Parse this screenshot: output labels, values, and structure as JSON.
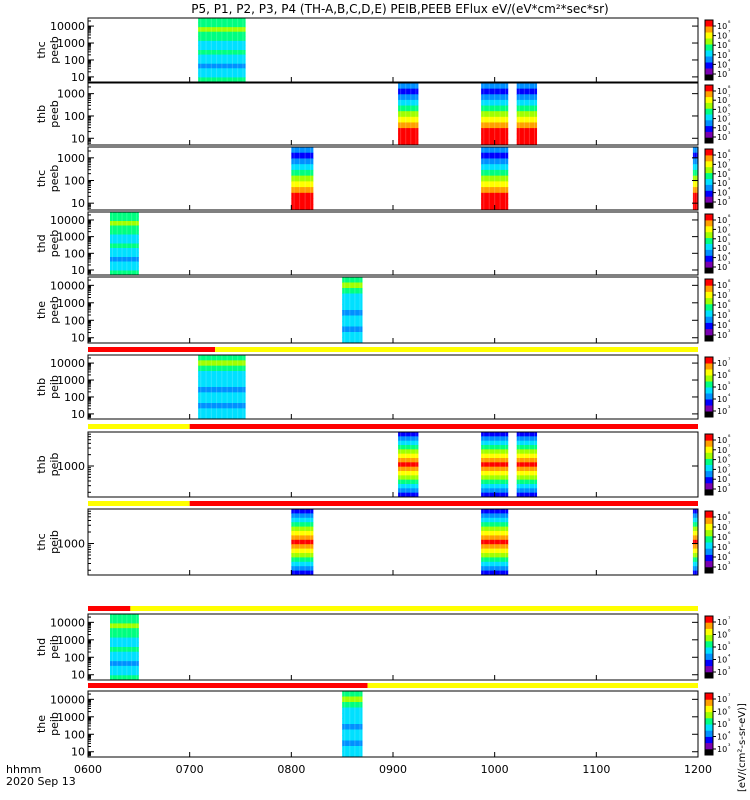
{
  "title": "P5, P1, P2, P3, P4 (TH-A,B,C,D,E) PEIB,PEEB EFlux eV/(eV*cm²*sec*sr)",
  "footer": {
    "axis_name": "hhmm",
    "date": "2020 Sep 13"
  },
  "colorbar_unit": "[eV/(cm²-s-sr-eV)]",
  "colors": {
    "flag_red": "#ff0000",
    "flag_yellow": "#ffff00",
    "colormap": [
      "#000000",
      "#7a00b0",
      "#0000ff",
      "#0090ff",
      "#00e0ff",
      "#00ff80",
      "#a0ff00",
      "#ffff00",
      "#ffa000",
      "#ff0000"
    ]
  },
  "chart_data": {
    "type": "heatmap",
    "x_ticks": [
      "0600",
      "0700",
      "0800",
      "0900",
      "1000",
      "1100",
      "1200"
    ],
    "xlim": [
      "06:00",
      "12:00"
    ],
    "panels": [
      {
        "ylabel": [
          "thc",
          "peeb"
        ],
        "yscale": "log",
        "ylim": [
          5,
          30000
        ],
        "yticks": [
          "10",
          "100",
          "1000",
          "10000"
        ],
        "cbar_ticks": [
          "10⁸",
          "10⁷",
          "10⁶",
          "10⁵",
          "10⁴",
          "10³"
        ],
        "intervals": [
          {
            "start": "07:05",
            "end": "07:33",
            "palette": "green"
          }
        ]
      },
      {
        "ylabel": [
          "thb",
          "peeb"
        ],
        "yscale": "log",
        "ylim": [
          5,
          3000
        ],
        "yticks": [
          "10",
          "100",
          "1000"
        ],
        "cbar_ticks": [
          "10⁸",
          "10⁷",
          "10⁶",
          "10⁵",
          "10⁴",
          "10³"
        ],
        "intervals": [
          {
            "start": "09:03",
            "end": "09:15",
            "palette": "full"
          },
          {
            "start": "09:52",
            "end": "10:08",
            "palette": "full"
          },
          {
            "start": "10:13",
            "end": "10:25",
            "palette": "full"
          }
        ]
      },
      {
        "ylabel": [
          "thc",
          "peeb"
        ],
        "yscale": "log",
        "ylim": [
          5,
          3000
        ],
        "yticks": [
          "10",
          "100",
          "1000"
        ],
        "cbar_ticks": [
          "10⁸",
          "10⁷",
          "10⁶",
          "10⁵",
          "10⁴",
          "10³"
        ],
        "intervals": [
          {
            "start": "08:00",
            "end": "08:13",
            "palette": "full"
          },
          {
            "start": "09:52",
            "end": "10:08",
            "palette": "full"
          },
          {
            "start": "11:57",
            "end": "12:00",
            "palette": "full"
          }
        ]
      },
      {
        "ylabel": [
          "thd",
          "peeb"
        ],
        "yscale": "log",
        "ylim": [
          5,
          30000
        ],
        "yticks": [
          "10",
          "100",
          "1000",
          "10000"
        ],
        "cbar_ticks": [
          "10⁸",
          "10⁷",
          "10⁶",
          "10⁵",
          "10⁴",
          "10³"
        ],
        "intervals": [
          {
            "start": "06:13",
            "end": "06:30",
            "palette": "green"
          }
        ]
      },
      {
        "ylabel": [
          "the",
          "peeb"
        ],
        "yscale": "log",
        "ylim": [
          5,
          30000
        ],
        "yticks": [
          "10",
          "100",
          "1000",
          "10000"
        ],
        "cbar_ticks": [
          "10⁸",
          "10⁷",
          "10⁶",
          "10⁵",
          "10⁴",
          "10³"
        ],
        "intervals": [
          {
            "start": "08:30",
            "end": "08:42",
            "palette": "blue"
          }
        ]
      },
      {
        "ylabel": [
          "thb",
          "peib"
        ],
        "yscale": "log",
        "ylim": [
          5,
          30000
        ],
        "yticks": [
          "10",
          "100",
          "1000",
          "10000"
        ],
        "cbar_ticks": [
          "10⁷",
          "10⁶",
          "10⁵",
          "10⁴",
          "10³"
        ],
        "flag": [
          {
            "start": "06:00",
            "end": "07:15",
            "color": "red"
          },
          {
            "start": "07:15",
            "end": "12:00",
            "color": "yellow"
          }
        ],
        "intervals": [
          {
            "start": "07:05",
            "end": "07:33",
            "palette": "blue"
          }
        ]
      },
      {
        "ylabel": [
          "thb",
          "peib"
        ],
        "yscale": "log",
        "ylim": [
          150,
          8000
        ],
        "yticks": [
          "1000"
        ],
        "cbar_ticks": [
          "10⁸",
          "10⁷",
          "10⁶",
          "10⁵",
          "10⁴",
          "10³"
        ],
        "flag": [
          {
            "start": "06:00",
            "end": "07:00",
            "color": "yellow"
          },
          {
            "start": "07:00",
            "end": "12:00",
            "color": "red"
          }
        ],
        "intervals": [
          {
            "start": "09:03",
            "end": "09:15",
            "palette": "banded"
          },
          {
            "start": "09:52",
            "end": "10:08",
            "palette": "banded"
          },
          {
            "start": "10:13",
            "end": "10:25",
            "palette": "banded"
          }
        ]
      },
      {
        "ylabel": [
          "thc",
          "peib"
        ],
        "yscale": "log",
        "ylim": [
          150,
          8000
        ],
        "yticks": [
          "1000"
        ],
        "cbar_ticks": [
          "10⁸",
          "10⁷",
          "10⁶",
          "10⁵",
          "10⁴",
          "10³"
        ],
        "flag": [
          {
            "start": "06:00",
            "end": "07:00",
            "color": "yellow"
          },
          {
            "start": "07:00",
            "end": "12:00",
            "color": "red"
          }
        ],
        "intervals": [
          {
            "start": "08:00",
            "end": "08:13",
            "palette": "banded"
          },
          {
            "start": "09:52",
            "end": "10:08",
            "palette": "banded"
          },
          {
            "start": "11:57",
            "end": "12:00",
            "palette": "banded"
          }
        ]
      },
      {
        "ylabel": [
          "thd",
          "peib"
        ],
        "yscale": "log",
        "ylim": [
          5,
          30000
        ],
        "yticks": [
          "10",
          "100",
          "1000",
          "10000"
        ],
        "cbar_ticks": [
          "10⁷",
          "10⁶",
          "10⁵",
          "10⁴",
          "10³"
        ],
        "flag": [
          {
            "start": "06:00",
            "end": "06:25",
            "color": "red"
          },
          {
            "start": "06:25",
            "end": "12:00",
            "color": "yellow"
          }
        ],
        "intervals": [
          {
            "start": "06:13",
            "end": "06:30",
            "palette": "green"
          }
        ]
      },
      {
        "ylabel": [
          "the",
          "peib"
        ],
        "yscale": "log",
        "ylim": [
          5,
          30000
        ],
        "yticks": [
          "10",
          "100",
          "1000",
          "10000"
        ],
        "cbar_ticks": [
          "10⁷",
          "10⁶",
          "10⁵",
          "10⁴",
          "10³"
        ],
        "flag": [
          {
            "start": "06:00",
            "end": "08:45",
            "color": "red"
          },
          {
            "start": "08:45",
            "end": "12:00",
            "color": "yellow"
          }
        ],
        "intervals": [
          {
            "start": "08:30",
            "end": "08:42",
            "palette": "blue"
          }
        ]
      }
    ]
  }
}
